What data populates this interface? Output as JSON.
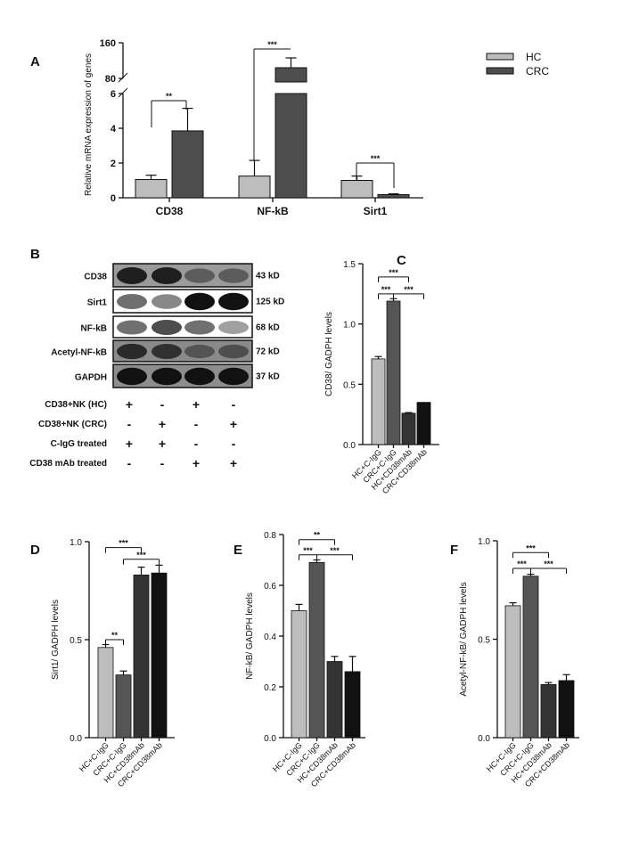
{
  "panel_labels": [
    "A",
    "B",
    "C",
    "D",
    "E",
    "F"
  ],
  "chart_data": [
    {
      "panel": "A",
      "type": "bar",
      "ylabel": "Relative mRNA expression of genes",
      "categories": [
        "CD38",
        "NF-kB",
        "Sirt1"
      ],
      "y_ticks": [
        "0",
        "2",
        "4",
        "6",
        "80",
        "160"
      ],
      "y_axis_break": [
        6,
        80
      ],
      "legend": {
        "position": "top-right",
        "entries": [
          "HC",
          "CRC"
        ]
      },
      "series": [
        {
          "name": "HC",
          "color": "#bdbdbd",
          "values": [
            1.05,
            1.25,
            1.0
          ],
          "errors": [
            0.25,
            0.9,
            0.25
          ]
        },
        {
          "name": "CRC",
          "color": "#4d4d4d",
          "values": [
            3.85,
            104,
            0.18
          ],
          "errors": [
            1.3,
            22,
            0.05
          ]
        }
      ],
      "significance": [
        {
          "category": "CD38",
          "label": "**"
        },
        {
          "category": "NF-kB",
          "label": "***"
        },
        {
          "category": "Sirt1",
          "label": "***"
        }
      ]
    },
    {
      "panel": "C",
      "type": "bar",
      "ylabel": "CD38/ GADPH levels",
      "categories": [
        "HC+C-IgG",
        "CRC+C-IgG",
        "HC+CD38mAb",
        "CRC+CD38mAb"
      ],
      "values": [
        0.71,
        1.19,
        0.26,
        0.35
      ],
      "errors": [
        0.02,
        0.02,
        0.005,
        0.0
      ],
      "ylim": [
        0,
        1.5
      ],
      "y_ticks": [
        "0.0",
        "0.5",
        "1.0",
        "1.5"
      ],
      "colors": [
        "#bdbdbd",
        "#555555",
        "#333333",
        "#111111"
      ],
      "significance": [
        {
          "pair": [
            0,
            1
          ],
          "label": "***"
        },
        {
          "pair": [
            0,
            2
          ],
          "label": "***"
        },
        {
          "pair": [
            1,
            3
          ],
          "label": "***"
        }
      ]
    },
    {
      "panel": "D",
      "type": "bar",
      "ylabel": "Sirt1/ GADPH levels",
      "categories": [
        "HC+C-IgG",
        "CRC+C-IgG",
        "HC+CD38mAb",
        "CRC+CD38mAb"
      ],
      "values": [
        0.46,
        0.32,
        0.83,
        0.84
      ],
      "errors": [
        0.015,
        0.02,
        0.04,
        0.04
      ],
      "ylim": [
        0,
        1.0
      ],
      "y_ticks": [
        "0.0",
        "0.5",
        "1.0"
      ],
      "colors": [
        "#bdbdbd",
        "#555555",
        "#333333",
        "#111111"
      ],
      "significance": [
        {
          "pair": [
            0,
            1
          ],
          "label": "**"
        },
        {
          "pair": [
            0,
            2
          ],
          "label": "***"
        },
        {
          "pair": [
            1,
            3
          ],
          "label": "***"
        }
      ]
    },
    {
      "panel": "E",
      "type": "bar",
      "ylabel": "NF-kB/ GADPH  levels",
      "categories": [
        "HC+C-IgG",
        "CRC+C-IgG",
        "HC+CD38mAb",
        "CRC+CD38mAb"
      ],
      "values": [
        0.5,
        0.69,
        0.3,
        0.26
      ],
      "errors": [
        0.025,
        0.01,
        0.02,
        0.06
      ],
      "ylim": [
        0,
        0.8
      ],
      "y_ticks": [
        "0.0",
        "0.2",
        "0.4",
        "0.6",
        "0.8"
      ],
      "colors": [
        "#bdbdbd",
        "#555555",
        "#333333",
        "#111111"
      ],
      "significance": [
        {
          "pair": [
            0,
            1
          ],
          "label": "***"
        },
        {
          "pair": [
            0,
            2
          ],
          "label": "**"
        },
        {
          "pair": [
            1,
            3
          ],
          "label": "***"
        }
      ]
    },
    {
      "panel": "F",
      "type": "bar",
      "ylabel": "Acetyl-NF-kB/ GADPH  levels",
      "categories": [
        "HC+C-IgG",
        "CRC+C-IgG",
        "HC+CD38mAb",
        "CRC+CD38mAb"
      ],
      "values": [
        0.67,
        0.82,
        0.27,
        0.29
      ],
      "errors": [
        0.015,
        0.01,
        0.01,
        0.03
      ],
      "ylim": [
        0,
        1.0
      ],
      "y_ticks": [
        "0.0",
        "0.5",
        "1.0"
      ],
      "colors": [
        "#bdbdbd",
        "#555555",
        "#333333",
        "#111111"
      ],
      "significance": [
        {
          "pair": [
            0,
            1
          ],
          "label": "***"
        },
        {
          "pair": [
            0,
            2
          ],
          "label": "***"
        },
        {
          "pair": [
            1,
            3
          ],
          "label": "***"
        }
      ]
    }
  ],
  "western_blot": {
    "bands": [
      {
        "protein": "CD38",
        "size": "43 kD"
      },
      {
        "protein": "Sirt1",
        "size": "125 kD"
      },
      {
        "protein": "NF-kB",
        "size": "68 kD"
      },
      {
        "protein": "Acetyl-NF-kB",
        "size": "72 kD"
      },
      {
        "protein": "GAPDH",
        "size": "37 kD"
      }
    ],
    "conditions": [
      {
        "label": "CD38+NK (HC)",
        "lanes": [
          "+",
          "-",
          "+",
          "-"
        ]
      },
      {
        "label": "CD38+NK (CRC)",
        "lanes": [
          "-",
          "+",
          "-",
          "+"
        ]
      },
      {
        "label": "C-IgG treated",
        "lanes": [
          "+",
          "+",
          "-",
          "-"
        ]
      },
      {
        "label": "CD38 mAb treated",
        "lanes": [
          "-",
          "-",
          "+",
          "+"
        ]
      }
    ]
  }
}
